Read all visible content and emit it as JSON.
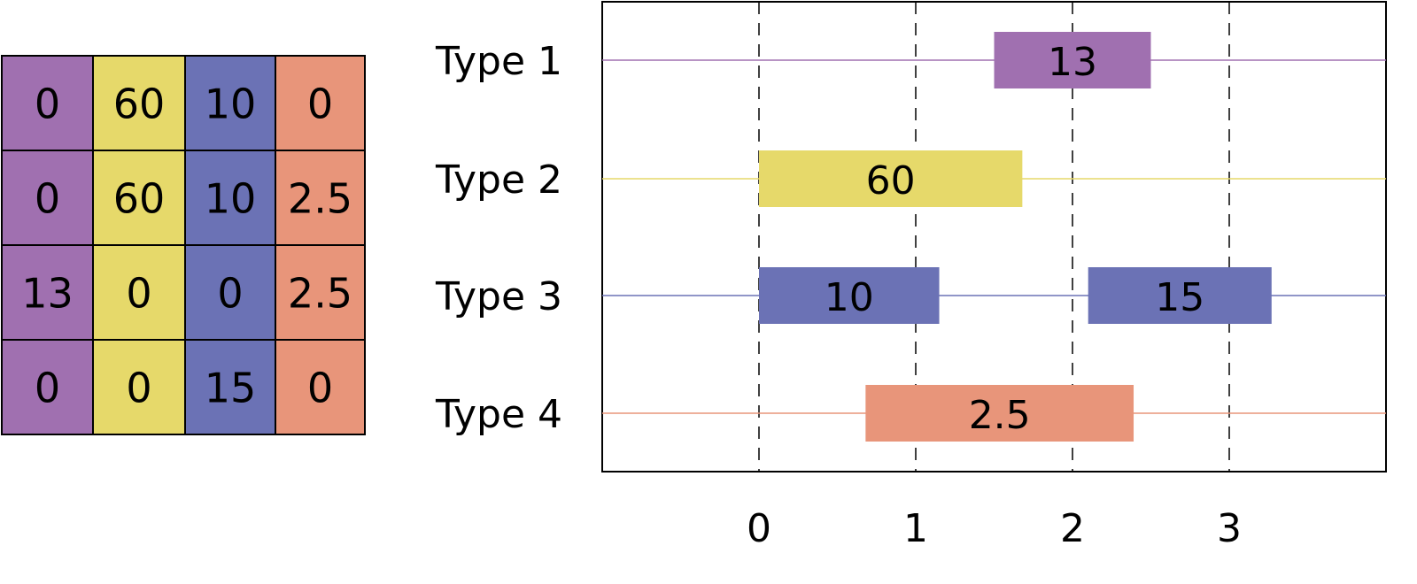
{
  "colors": [
    "#a070b0",
    "#e6d96a",
    "#6b72b5",
    "#e8957a"
  ],
  "matrix": [
    [
      "0",
      "60",
      "10",
      "0"
    ],
    [
      "0",
      "60",
      "10",
      "2.5"
    ],
    [
      "13",
      "0",
      "0",
      "2.5"
    ],
    [
      "0",
      "0",
      "15",
      "0"
    ]
  ],
  "chart_data": {
    "type": "bar",
    "orientation": "horizontal-range",
    "categories": [
      "Type 1",
      "Type 2",
      "Type 3",
      "Type 4"
    ],
    "xlim": [
      -1,
      4
    ],
    "x_ticks": [
      "0",
      "1",
      "2",
      "3"
    ],
    "grid": "dashed vertical at ticks",
    "bars": [
      {
        "category": "Type 1",
        "start": 1.5,
        "end": 2.5,
        "label": "13"
      },
      {
        "category": "Type 2",
        "start": 0,
        "end": 1.68,
        "label": "60"
      },
      {
        "category": "Type 3",
        "start": 0,
        "end": 1.15,
        "label": "10"
      },
      {
        "category": "Type 3",
        "start": 2.1,
        "end": 3.27,
        "label": "15"
      },
      {
        "category": "Type 4",
        "start": 0.68,
        "end": 2.39,
        "label": "2.5"
      }
    ]
  }
}
